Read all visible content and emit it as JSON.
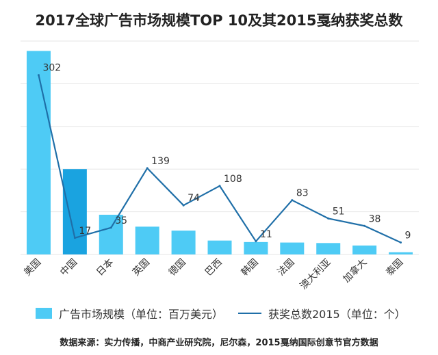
{
  "title": "2017全球广告市场规模TOP 10及其2015戛纳获奖总数",
  "source_note": "数据来源：实力传播，中商产业研究院，尼尔森，2015戛纳国际创意节官方数据",
  "colors": {
    "bar": "#4ecbf5",
    "bar_highlight": "#1aa3e0",
    "line": "#1f6fa8",
    "grid": "#e6e6e6"
  },
  "chart_data": {
    "type": "bar",
    "categories": [
      "美国",
      "中国",
      "日本",
      "英国",
      "德国",
      "巴西",
      "韩国",
      "法国",
      "澳大利亚",
      "加拿大",
      "泰国"
    ],
    "series": [
      {
        "name": "广告市场规模（单位：百万美元）",
        "type": "bar",
        "axis": "left",
        "values": [
          205000,
          86000,
          40000,
          28000,
          24000,
          14000,
          12500,
          12000,
          11500,
          9000,
          2200
        ]
      },
      {
        "name": "获奖总数2015（单位：个）",
        "type": "line",
        "axis": "right",
        "values": [
          302,
          17,
          35,
          139,
          74,
          108,
          11,
          83,
          51,
          38,
          9
        ],
        "data_labels": [
          "302",
          "17",
          "35",
          "139",
          "74",
          "108",
          "11",
          "83",
          "51",
          "38",
          "9"
        ]
      }
    ],
    "highlight_index": 1,
    "grid": true,
    "legend_position": "bottom"
  }
}
